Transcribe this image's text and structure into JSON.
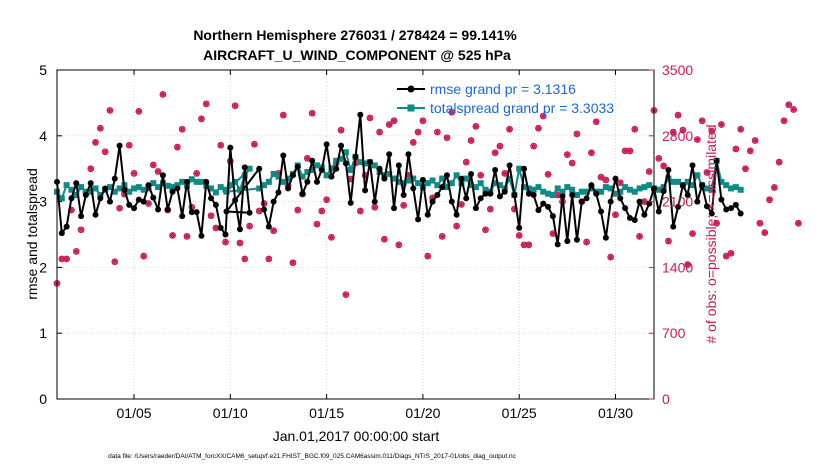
{
  "chart_data": {
    "type": "line",
    "title": "Northern Hemisphere 276031 / 278424 = 99.141%",
    "subtitle": "AIRCRAFT_U_WIND_COMPONENT @ 525 hPa",
    "xlabel": "Jan.01,2017 00:00:00 start",
    "ylabel_left": "rmse and totalspread",
    "ylabel_right": "# of obs: o=possible; ×=assimilated",
    "footnote": "data file: /Users/raeder/DAI/ATM_forcXX/CAM6_setup/f.e21.FHIST_BGC.f09_025.CAM6assim.011/Diags_NTrS_2017-01/obs_diag_output.nc",
    "xlim": [
      1,
      32
    ],
    "ylim_left": [
      0,
      5
    ],
    "ylim_right": [
      0,
      3500
    ],
    "grid": true,
    "legend_position": "top-right",
    "colors": {
      "rmse": "#000000",
      "spread": "#108a84",
      "obs": "#cc1a58"
    },
    "x_ticks": [
      {
        "x": 5,
        "label": "01/05"
      },
      {
        "x": 10,
        "label": "01/10"
      },
      {
        "x": 15,
        "label": "01/15"
      },
      {
        "x": 20,
        "label": "01/20"
      },
      {
        "x": 25,
        "label": "01/25"
      },
      {
        "x": 30,
        "label": "01/30"
      }
    ],
    "y_ticks_left": [
      {
        "v": 0,
        "label": "0"
      },
      {
        "v": 1,
        "label": "1"
      },
      {
        "v": 2,
        "label": "2"
      },
      {
        "v": 3,
        "label": "3"
      },
      {
        "v": 4,
        "label": "4"
      },
      {
        "v": 5,
        "label": "5"
      }
    ],
    "y_ticks_right": [
      {
        "v": 0,
        "label": "0"
      },
      {
        "v": 700,
        "label": "700"
      },
      {
        "v": 1400,
        "label": "1400"
      },
      {
        "v": 2100,
        "label": "2100"
      },
      {
        "v": 2800,
        "label": "2800"
      },
      {
        "v": 3500,
        "label": "3500"
      }
    ],
    "x_start": 1.0,
    "x_step": 0.25,
    "series": [
      {
        "name": "rmse grand pr = 3.1316",
        "axis": "left",
        "marker": "dot",
        "values": [
          3.3,
          2.52,
          2.62,
          3.05,
          3.28,
          2.78,
          3.1,
          3.28,
          2.8,
          3.05,
          3.2,
          3.0,
          3.35,
          3.85,
          3.18,
          2.95,
          2.9,
          3.03,
          3.0,
          3.25,
          3.06,
          2.88,
          3.4,
          2.88,
          3.15,
          3.2,
          2.78,
          3.3,
          2.84,
          2.84,
          2.48,
          3.3,
          3.05,
          2.95,
          2.6,
          2.5,
          3.82,
          3.02,
          2.58,
          3.52,
          2.83,
          2.85,
          3.5,
          2.88,
          2.62,
          3.0,
          3.14,
          3.7,
          3.2,
          3.4,
          3.53,
          3.12,
          3.3,
          3.62,
          3.3,
          3.48,
          3.87,
          3.38,
          3.5,
          3.85,
          3.58,
          2.98,
          3.68,
          4.32,
          3.17,
          3.6,
          3.0,
          3.5,
          3.35,
          3.72,
          2.9,
          3.55,
          3.1,
          3.72,
          3.2,
          2.73,
          3.33,
          2.8,
          3.0,
          3.1,
          3.22,
          3.4,
          3.0,
          2.8,
          3.35,
          3.05,
          3.42,
          2.9,
          3.05,
          3.12,
          3.12,
          3.48,
          3.08,
          3.15,
          3.55,
          3.1,
          2.6,
          3.5,
          3.12,
          3.1,
          2.87,
          2.97,
          2.92,
          2.78,
          2.35,
          3.08,
          2.4,
          3.1,
          2.42,
          3.0,
          3.05,
          3.25,
          3.12,
          2.85,
          2.45,
          3.0,
          3.35,
          3.05,
          2.9,
          2.75,
          2.72,
          3.0,
          2.8,
          2.97,
          3.2,
          2.85,
          3.16,
          3.48,
          2.62,
          2.92,
          3.25,
          3.1,
          3.55,
          3.0,
          3.25,
          2.93,
          2.82,
          3.62,
          3.03,
          2.88,
          2.9,
          2.95,
          2.82
        ],
        "x_override": {
          "41": 9.8
        }
      },
      {
        "name": "totalspread grand pr = 3.3033",
        "axis": "left",
        "marker": "square",
        "values": [
          3.15,
          3.05,
          3.25,
          3.18,
          3.1,
          3.22,
          3.15,
          3.15,
          3.2,
          3.1,
          3.18,
          3.22,
          3.15,
          3.2,
          3.25,
          3.15,
          3.2,
          3.22,
          3.18,
          3.2,
          3.28,
          3.22,
          3.28,
          3.24,
          3.22,
          3.25,
          3.3,
          3.24,
          3.34,
          3.3,
          3.3,
          3.24,
          3.2,
          3.14,
          3.22,
          3.18,
          3.25,
          3.3,
          3.18,
          3.4,
          3.5,
          3.15,
          3.2,
          3.25,
          3.3,
          3.42,
          3.38,
          3.3,
          3.35,
          3.42,
          3.55,
          3.38,
          3.45,
          3.48,
          3.55,
          3.52,
          3.4,
          3.5,
          3.62,
          3.65,
          3.75,
          3.48,
          3.68,
          3.6,
          3.58,
          3.6,
          3.55,
          3.45,
          3.4,
          3.42,
          3.35,
          3.3,
          3.28,
          3.32,
          3.35,
          3.28,
          3.22,
          3.28,
          3.32,
          3.25,
          3.35,
          3.22,
          3.28,
          3.4,
          3.28,
          3.35,
          3.25,
          3.22,
          3.28,
          3.18,
          3.15,
          3.28,
          3.25,
          3.2,
          3.35,
          3.1,
          3.5,
          3.22,
          3.2,
          3.18,
          3.22,
          3.15,
          3.12,
          3.1,
          3.2,
          3.15,
          3.22,
          3.18,
          3.1,
          3.15,
          3.15,
          3.2,
          3.15,
          3.15,
          3.22,
          3.2,
          3.12,
          3.15,
          3.22,
          3.18,
          3.15,
          3.2,
          3.22,
          3.25,
          3.2,
          3.18,
          3.22,
          3.35,
          3.3,
          3.3,
          3.25,
          3.3,
          3.25,
          3.4,
          3.25,
          3.2,
          3.18,
          3.62,
          3.3,
          3.25,
          3.2,
          3.22,
          3.18
        ],
        "x_override": {
          "41": 9.8
        }
      }
    ],
    "obs": {
      "name": "# of obs",
      "axis": "right",
      "x_start": 1.0,
      "x_step": 0.25,
      "possible": [
        1230,
        1490,
        1490,
        2010,
        1570,
        1800,
        2200,
        2450,
        2730,
        2880,
        2630,
        3070,
        1460,
        2030,
        2180,
        2700,
        2400,
        3060,
        1520,
        2080,
        2490,
        2420,
        3240,
        2010,
        1740,
        2680,
        2870,
        1730,
        2040,
        2400,
        2980,
        3140,
        1950,
        1820,
        2700,
        1670,
        2530,
        3120,
        1660,
        1490,
        1840,
        2710,
        2000,
        2080,
        1490,
        1790,
        2400,
        3020,
        2270,
        1450,
        2010,
        2180,
        2560,
        3040,
        1860,
        2000,
        2120,
        1720,
        2510,
        2860,
        1110,
        2340,
        2510,
        2000,
        2380,
        2990,
        2040,
        2840,
        1700,
        2920,
        2960,
        1640,
        2060,
        2380,
        2730,
        2840,
        2960,
        1520,
        2140,
        2840,
        1730,
        2780,
        3050,
        1840,
        2070,
        2520,
        2750,
        2900,
        2380,
        1800,
        2020,
        2620,
        2690,
        2400,
        2870,
        2020,
        1740,
        1640,
        1640,
        2690,
        2880,
        3010,
        2390,
        1760,
        2170,
        2100,
        2600,
        2510,
        2820,
        2100,
        1670,
        2620,
        2950,
        2360,
        2330,
        1510,
        1960,
        2300,
        2640,
        2640,
        2870,
        1730,
        2100,
        2420,
        3070,
        2560,
        2480,
        1680,
        2840,
        3020,
        2860,
        1430,
        1760,
        2760,
        2960,
        2410,
        2850,
        1870,
        2920,
        1520,
        1550,
        2660,
        2870,
        2450,
        2640,
        2750,
        1870,
        1770,
        2120,
        2250,
        2520,
        2960,
        3130,
        3080,
        1870
      ],
      "assimilated": [
        1230,
        1490,
        1490,
        2010,
        1570,
        1800,
        2200,
        2450,
        2730,
        2880,
        2630,
        3070,
        1460,
        2030,
        2180,
        2700,
        2400,
        3060,
        1520,
        2080,
        2490,
        2420,
        3240,
        2010,
        1740,
        2680,
        2870,
        1730,
        2040,
        2400,
        2980,
        3140,
        1950,
        1820,
        2700,
        1670,
        2530,
        3120,
        1660,
        1490,
        1840,
        2710,
        2000,
        2080,
        1490,
        1790,
        2400,
        3020,
        2270,
        1450,
        2010,
        2180,
        2560,
        3040,
        1860,
        2000,
        2120,
        1720,
        2510,
        2860,
        1110,
        2340,
        2510,
        2000,
        2380,
        2990,
        2040,
        2840,
        1700,
        2920,
        2960,
        1640,
        2060,
        2380,
        2730,
        2840,
        2960,
        1520,
        2140,
        2840,
        1730,
        2780,
        3050,
        1840,
        2070,
        2520,
        2750,
        2900,
        2380,
        1800,
        2020,
        2620,
        2690,
        2400,
        2870,
        2020,
        1740,
        1640,
        1640,
        2690,
        2880,
        3010,
        2390,
        1760,
        2170,
        2100,
        2600,
        2510,
        2820,
        2100,
        1670,
        2620,
        2950,
        2360,
        2330,
        1510,
        1960,
        2300,
        2640,
        2640,
        2870,
        1730,
        2100,
        2420,
        3070,
        2560,
        2480,
        1680,
        2840,
        3020,
        2860,
        1430,
        1760,
        2760,
        2960,
        2410,
        2850,
        1870,
        2920,
        1520,
        1550,
        2660,
        2870,
        2450,
        2640,
        2750,
        1870,
        1770,
        2120,
        2250,
        2520,
        2960,
        3130,
        3080,
        1870
      ]
    }
  }
}
